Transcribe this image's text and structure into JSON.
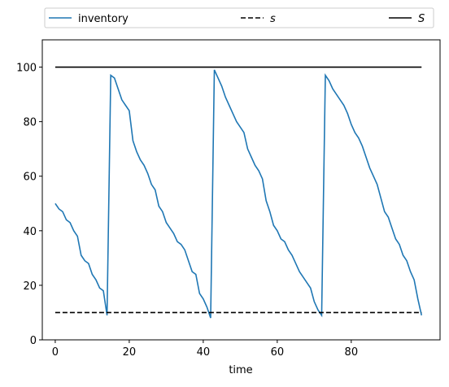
{
  "chart_data": {
    "type": "line",
    "xlabel": "time",
    "x": [
      0,
      1,
      2,
      3,
      4,
      5,
      6,
      7,
      8,
      9,
      10,
      11,
      12,
      13,
      14,
      15,
      16,
      17,
      18,
      19,
      20,
      21,
      22,
      23,
      24,
      25,
      26,
      27,
      28,
      29,
      30,
      31,
      32,
      33,
      34,
      35,
      36,
      37,
      38,
      39,
      40,
      41,
      42,
      43,
      44,
      45,
      46,
      47,
      48,
      49,
      50,
      51,
      52,
      53,
      54,
      55,
      56,
      57,
      58,
      59,
      60,
      61,
      62,
      63,
      64,
      65,
      66,
      67,
      68,
      69,
      70,
      71,
      72,
      73,
      74,
      75,
      76,
      77,
      78,
      79,
      80,
      81,
      82,
      83,
      84,
      85,
      86,
      87,
      88,
      89,
      90,
      91,
      92,
      93,
      94,
      95,
      96,
      97,
      98,
      99
    ],
    "series": [
      {
        "name": "inventory",
        "color": "#1f77b4",
        "dash": "solid",
        "values": [
          50,
          48,
          47,
          44,
          43,
          40,
          38,
          31,
          29,
          28,
          24,
          22,
          19,
          18,
          9,
          97,
          96,
          92,
          88,
          86,
          84,
          73,
          69,
          66,
          64,
          61,
          57,
          55,
          49,
          47,
          43,
          41,
          39,
          36,
          35,
          33,
          29,
          25,
          24,
          17,
          15,
          12,
          8,
          99,
          96,
          93,
          89,
          86,
          83,
          80,
          78,
          76,
          70,
          67,
          64,
          62,
          59,
          51,
          47,
          42,
          40,
          37,
          36,
          33,
          31,
          28,
          25,
          23,
          21,
          19,
          14,
          11,
          9,
          97,
          95,
          92,
          90,
          88,
          86,
          83,
          79,
          76,
          74,
          71,
          67,
          63,
          60,
          57,
          52,
          47,
          45,
          41,
          37,
          35,
          31,
          29,
          25,
          22,
          15,
          9
        ]
      },
      {
        "name": "s",
        "color": "#000000",
        "dash": "dashed",
        "values": [
          10,
          10,
          10,
          10,
          10,
          10,
          10,
          10,
          10,
          10,
          10,
          10,
          10,
          10,
          10,
          10,
          10,
          10,
          10,
          10,
          10,
          10,
          10,
          10,
          10,
          10,
          10,
          10,
          10,
          10,
          10,
          10,
          10,
          10,
          10,
          10,
          10,
          10,
          10,
          10,
          10,
          10,
          10,
          10,
          10,
          10,
          10,
          10,
          10,
          10,
          10,
          10,
          10,
          10,
          10,
          10,
          10,
          10,
          10,
          10,
          10,
          10,
          10,
          10,
          10,
          10,
          10,
          10,
          10,
          10,
          10,
          10,
          10,
          10,
          10,
          10,
          10,
          10,
          10,
          10,
          10,
          10,
          10,
          10,
          10,
          10,
          10,
          10,
          10,
          10,
          10,
          10,
          10,
          10,
          10,
          10,
          10,
          10,
          10,
          10
        ]
      },
      {
        "name": "S",
        "color": "#000000",
        "dash": "solid",
        "values": [
          100,
          100,
          100,
          100,
          100,
          100,
          100,
          100,
          100,
          100,
          100,
          100,
          100,
          100,
          100,
          100,
          100,
          100,
          100,
          100,
          100,
          100,
          100,
          100,
          100,
          100,
          100,
          100,
          100,
          100,
          100,
          100,
          100,
          100,
          100,
          100,
          100,
          100,
          100,
          100,
          100,
          100,
          100,
          100,
          100,
          100,
          100,
          100,
          100,
          100,
          100,
          100,
          100,
          100,
          100,
          100,
          100,
          100,
          100,
          100,
          100,
          100,
          100,
          100,
          100,
          100,
          100,
          100,
          100,
          100,
          100,
          100,
          100,
          100,
          100,
          100,
          100,
          100,
          100,
          100,
          100,
          100,
          100,
          100,
          100,
          100,
          100,
          100,
          100,
          100,
          100,
          100,
          100,
          100,
          100,
          100,
          100,
          100,
          100,
          100
        ]
      }
    ],
    "xlim": [
      -3.5,
      104
    ],
    "ylim": [
      0,
      110
    ],
    "xticks": [
      0,
      20,
      40,
      60,
      80
    ],
    "yticks": [
      0,
      20,
      40,
      60,
      80,
      100
    ],
    "legend": "above"
  }
}
